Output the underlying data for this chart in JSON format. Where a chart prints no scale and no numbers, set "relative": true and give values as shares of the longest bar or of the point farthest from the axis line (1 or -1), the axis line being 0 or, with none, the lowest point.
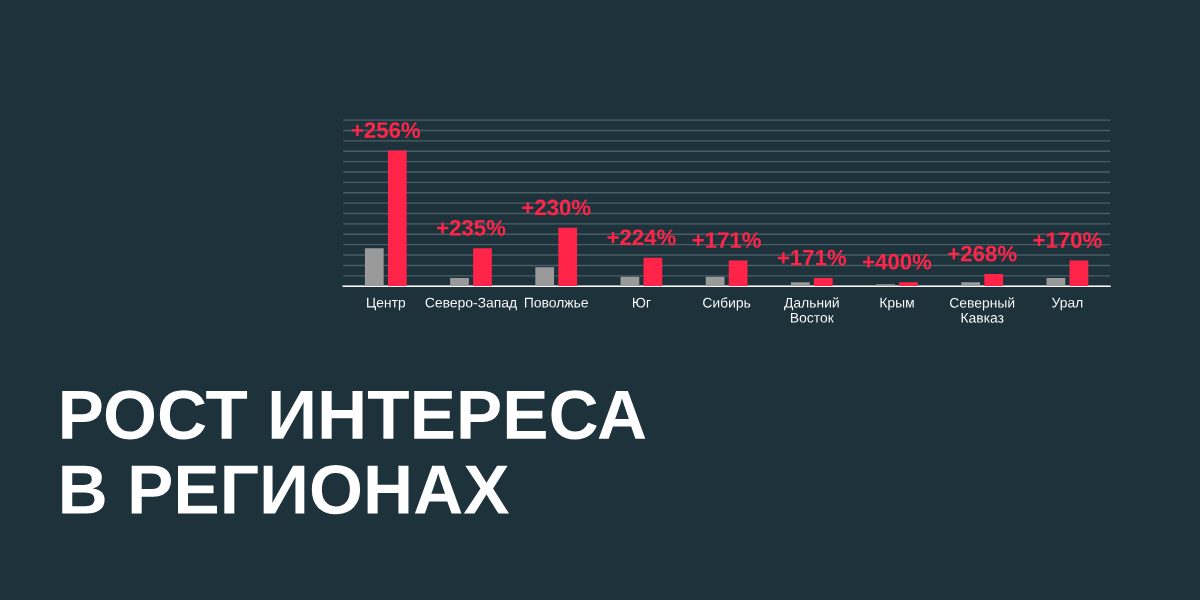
{
  "chart_data": {
    "type": "bar",
    "title": "РОСТ ИНТЕРЕСА\nВ РЕГИОНАХ",
    "relative": true,
    "grid": "y",
    "legend": false,
    "categories": [
      "Центр",
      "Северо-Запад",
      "Поволжье",
      "Юг",
      "Сибирь",
      "Дальний\nВосток",
      "Крым",
      "Северный\nКавказ",
      "Урал"
    ],
    "series": [
      {
        "color": "#9a9a9a",
        "values": [
          0.28,
          0.06,
          0.14,
          0.07,
          0.07,
          0.03,
          0.015,
          0.03,
          0.06
        ]
      },
      {
        "color": "#ff2448",
        "values": [
          1,
          0.28,
          0.43,
          0.21,
          0.19,
          0.06,
          0.03,
          0.09,
          0.19
        ]
      }
    ],
    "annotations": [
      {
        "text": "+256%",
        "x": "Центр",
        "y": 1
      },
      {
        "text": "+235%",
        "x": "Северо-Запад",
        "y": 0.28
      },
      {
        "text": "+230%",
        "x": "Поволжье",
        "y": 0.43
      },
      {
        "text": "+224%",
        "x": "Юг",
        "y": 0.21
      },
      {
        "text": "+171%",
        "x": "Сибирь",
        "y": 0.19
      },
      {
        "text": "+171%",
        "x": "Дальний\nВосток",
        "y": 0.06
      },
      {
        "text": "+400%",
        "x": "Крым",
        "y": 0.03
      },
      {
        "text": "+268%",
        "x": "Северный\nКавказ",
        "y": 0.09
      },
      {
        "text": "+170%",
        "x": "Урал",
        "y": 0.19
      }
    ]
  }
}
